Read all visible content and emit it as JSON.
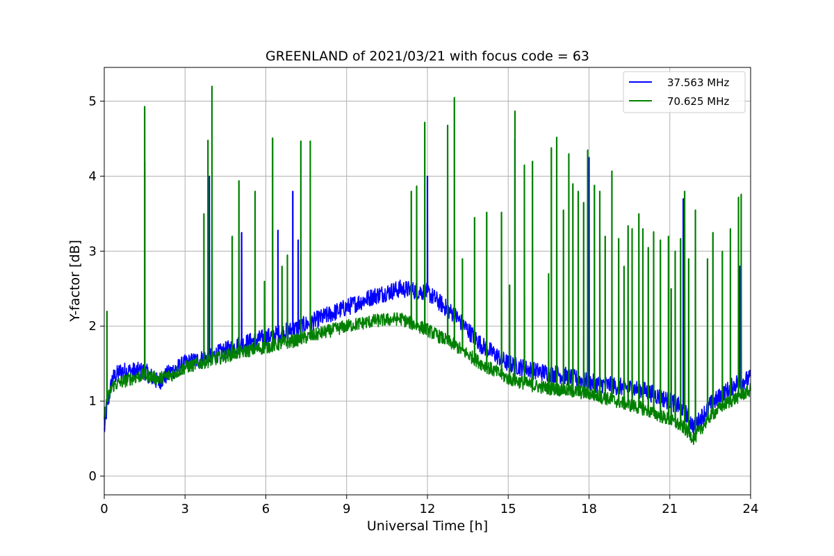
{
  "chart_data": {
    "type": "line",
    "title": "GREENLAND of 2021/03/21 with focus code = 63",
    "xlabel": "Universal Time [h]",
    "ylabel": "Y-factor [dB]",
    "xlim": [
      0,
      24
    ],
    "ylim": [
      -0.25,
      5.45
    ],
    "xticks": [
      0,
      3,
      6,
      9,
      12,
      15,
      18,
      21,
      24
    ],
    "yticks": [
      0,
      1,
      2,
      3,
      4,
      5
    ],
    "grid": true,
    "legend_position": "top-right",
    "series": [
      {
        "name": "37.563 MHz",
        "color": "#0000ff",
        "baseline": {
          "x": [
            0,
            0.1,
            0.3,
            0.6,
            1.0,
            1.5,
            2.0,
            2.5,
            3.0,
            4.0,
            5.0,
            6.0,
            7.0,
            8.0,
            9.0,
            10.0,
            11.0,
            12.0,
            13.0,
            14.0,
            15.0,
            16.0,
            17.0,
            18.0,
            19.0,
            20.0,
            21.0,
            21.5,
            21.9,
            22.5,
            23.0,
            23.5,
            24.0
          ],
          "y": [
            0.6,
            0.9,
            1.3,
            1.4,
            1.4,
            1.4,
            1.25,
            1.4,
            1.5,
            1.6,
            1.75,
            1.85,
            1.95,
            2.1,
            2.25,
            2.4,
            2.5,
            2.45,
            2.15,
            1.75,
            1.5,
            1.4,
            1.35,
            1.25,
            1.2,
            1.15,
            1.0,
            0.9,
            0.65,
            0.95,
            1.1,
            1.25,
            1.3
          ]
        },
        "noise": 0.12,
        "spikes": [
          [
            1.5,
            4.2
          ],
          [
            3.9,
            4.0
          ],
          [
            5.1,
            3.25
          ],
          [
            6.45,
            3.28
          ],
          [
            7.0,
            3.8
          ],
          [
            7.2,
            3.15
          ],
          [
            12.0,
            4.0
          ],
          [
            15.25,
            4.5
          ],
          [
            18.0,
            4.25
          ],
          [
            21.5,
            3.7
          ],
          [
            23.6,
            2.8
          ]
        ]
      },
      {
        "name": "70.625 MHz",
        "color": "#008000",
        "baseline": {
          "x": [
            0,
            0.1,
            0.3,
            0.6,
            1.0,
            1.5,
            2.0,
            2.5,
            3.0,
            4.0,
            5.0,
            6.0,
            7.0,
            8.0,
            9.0,
            10.0,
            11.0,
            12.0,
            13.0,
            14.0,
            15.0,
            16.0,
            17.0,
            18.0,
            19.0,
            20.0,
            21.0,
            21.5,
            21.9,
            22.5,
            23.0,
            23.5,
            24.0
          ],
          "y": [
            0.8,
            1.0,
            1.2,
            1.25,
            1.3,
            1.35,
            1.3,
            1.35,
            1.45,
            1.55,
            1.65,
            1.72,
            1.8,
            1.9,
            2.0,
            2.07,
            2.1,
            1.95,
            1.75,
            1.5,
            1.3,
            1.2,
            1.15,
            1.1,
            1.0,
            0.9,
            0.75,
            0.65,
            0.5,
            0.8,
            0.95,
            1.05,
            1.15
          ]
        },
        "noise": 0.09,
        "spikes": [
          [
            0.1,
            2.2
          ],
          [
            1.5,
            4.93
          ],
          [
            3.7,
            3.5
          ],
          [
            3.85,
            4.48
          ],
          [
            4.0,
            5.2
          ],
          [
            4.75,
            3.2
          ],
          [
            5.0,
            3.94
          ],
          [
            5.6,
            3.8
          ],
          [
            5.95,
            2.6
          ],
          [
            6.25,
            4.51
          ],
          [
            6.6,
            2.8
          ],
          [
            6.8,
            2.95
          ],
          [
            7.3,
            4.47
          ],
          [
            7.65,
            4.47
          ],
          [
            11.4,
            3.8
          ],
          [
            11.6,
            3.87
          ],
          [
            11.9,
            4.72
          ],
          [
            12.75,
            4.68
          ],
          [
            13.0,
            5.05
          ],
          [
            13.3,
            2.9
          ],
          [
            13.75,
            3.45
          ],
          [
            14.2,
            3.52
          ],
          [
            14.75,
            3.52
          ],
          [
            15.05,
            2.55
          ],
          [
            15.25,
            4.87
          ],
          [
            15.6,
            4.15
          ],
          [
            15.9,
            4.2
          ],
          [
            16.5,
            2.7
          ],
          [
            16.6,
            4.38
          ],
          [
            16.8,
            4.52
          ],
          [
            17.05,
            3.55
          ],
          [
            17.25,
            4.3
          ],
          [
            17.4,
            3.9
          ],
          [
            17.6,
            3.8
          ],
          [
            17.8,
            3.65
          ],
          [
            17.95,
            4.35
          ],
          [
            18.2,
            3.88
          ],
          [
            18.4,
            3.8
          ],
          [
            18.6,
            3.2
          ],
          [
            18.85,
            4.07
          ],
          [
            19.1,
            3.17
          ],
          [
            19.3,
            2.8
          ],
          [
            19.45,
            3.34
          ],
          [
            19.6,
            3.3
          ],
          [
            19.85,
            3.5
          ],
          [
            20.0,
            3.3
          ],
          [
            20.2,
            3.05
          ],
          [
            20.4,
            3.26
          ],
          [
            20.65,
            3.15
          ],
          [
            20.95,
            3.2
          ],
          [
            21.05,
            2.5
          ],
          [
            21.2,
            3.0
          ],
          [
            21.4,
            3.17
          ],
          [
            21.55,
            3.8
          ],
          [
            21.7,
            2.9
          ],
          [
            21.95,
            3.55
          ],
          [
            22.4,
            2.9
          ],
          [
            22.6,
            3.25
          ],
          [
            22.95,
            3.0
          ],
          [
            23.25,
            3.3
          ],
          [
            23.55,
            3.72
          ],
          [
            23.65,
            3.76
          ]
        ]
      }
    ]
  }
}
